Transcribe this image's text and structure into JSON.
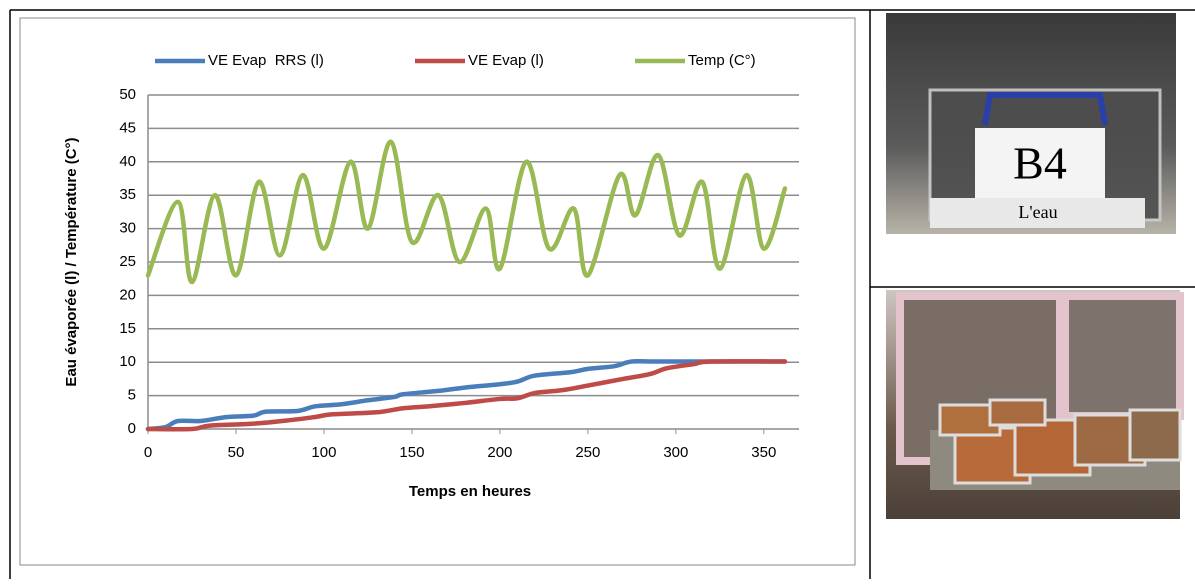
{
  "chart_data": {
    "type": "line",
    "x_label": "Temps en heures",
    "y_label": "Eau évaporée (l) / Température (C°)",
    "xlim": [
      0,
      370
    ],
    "xticks": [
      0,
      50,
      100,
      150,
      200,
      250,
      300,
      350
    ],
    "ylim": [
      0,
      50
    ],
    "yticks": [
      0,
      5,
      10,
      15,
      20,
      25,
      30,
      35,
      40,
      45,
      50
    ],
    "grid": true,
    "legend": "top",
    "series": [
      {
        "name": "VE Evap  RRS (l)",
        "color": "#4a7ebb",
        "x": [
          0,
          10,
          17,
          30,
          45,
          60,
          67,
          85,
          95,
          110,
          125,
          140,
          145,
          165,
          180,
          200,
          210,
          220,
          240,
          250,
          265,
          275,
          290,
          320,
          362
        ],
        "values": [
          0,
          0.3,
          1.2,
          1.2,
          1.8,
          2,
          2.6,
          2.7,
          3.4,
          3.7,
          4.3,
          4.8,
          5.2,
          5.7,
          6.2,
          6.7,
          7.1,
          8,
          8.5,
          9,
          9.4,
          10.1,
          10.1,
          10.1,
          10.1
        ]
      },
      {
        "name": "VE Evap (l)",
        "color": "#be4b48",
        "x": [
          0,
          25,
          35,
          60,
          80,
          95,
          105,
          130,
          145,
          160,
          180,
          200,
          210,
          220,
          235,
          250,
          270,
          285,
          295,
          310,
          320,
          362
        ],
        "values": [
          0,
          0,
          0.5,
          0.8,
          1.3,
          1.8,
          2.2,
          2.5,
          3.1,
          3.4,
          3.9,
          4.5,
          4.6,
          5.4,
          5.8,
          6.5,
          7.5,
          8.2,
          9.1,
          9.7,
          10.1,
          10.1
        ]
      },
      {
        "name": "Temp (C°)",
        "color": "#98b954",
        "x": [
          0,
          17,
          25,
          38,
          50,
          63,
          75,
          88,
          100,
          115,
          125,
          138,
          150,
          165,
          177,
          192,
          200,
          215,
          228,
          242,
          250,
          268,
          277,
          290,
          302,
          315,
          325,
          340,
          350,
          362
        ],
        "values": [
          23,
          34,
          22,
          35,
          23,
          37,
          26,
          38,
          27,
          40,
          30,
          43,
          28,
          35,
          25,
          33,
          24,
          40,
          27,
          33,
          23,
          38,
          32,
          41,
          29,
          37,
          24,
          38,
          27,
          36
        ]
      }
    ]
  },
  "photo_labels": [
    "B4",
    "L'eau"
  ]
}
